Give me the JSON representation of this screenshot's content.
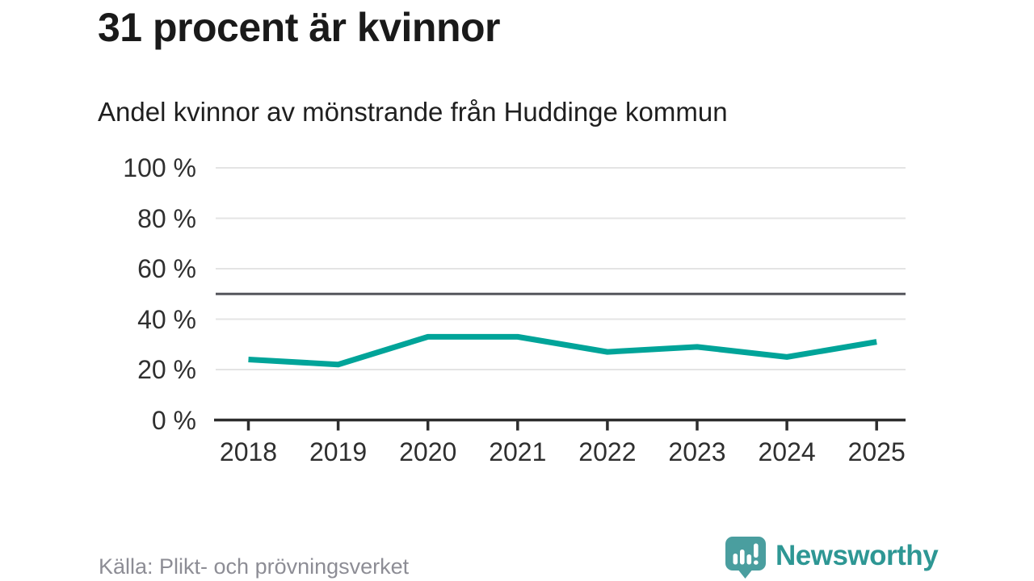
{
  "header": {
    "title": "31 procent är kvinnor",
    "subtitle": "Andel kvinnor av mönstrande från Huddinge kommun"
  },
  "chart_data": {
    "type": "line",
    "title": "31 procent är kvinnor",
    "subtitle": "Andel kvinnor av mönstrande från Huddinge kommun",
    "categories": [
      "2018",
      "2019",
      "2020",
      "2021",
      "2022",
      "2023",
      "2024",
      "2025"
    ],
    "series": [
      {
        "name": "Andel kvinnor av mönstrande",
        "values": [
          24,
          22,
          33,
          33,
          27,
          29,
          25,
          31
        ]
      }
    ],
    "unit": "%",
    "ylim": [
      0,
      100
    ],
    "yticks": [
      0,
      20,
      40,
      60,
      80,
      100
    ],
    "ytick_suffix": " %",
    "reference_line": 50,
    "grid": "horizontal",
    "legend": "none"
  },
  "footer": {
    "source": "Källa: Plikt- och prövningsverket",
    "brand": "Newsworthy"
  },
  "icons": {
    "logo": "newsworthy-speech-bubble-barchart-icon"
  },
  "colors": {
    "line": "#00a499",
    "reference_line": "#55565c",
    "gridline": "#e4e4e4",
    "axis": "#2d2d2d",
    "title_text": "#1a1a1a",
    "tick_text": "#2f2f2f",
    "source_text": "#8d8d95",
    "brand_teal": "#2e9794",
    "logo_fill": "#4a9e9f"
  }
}
